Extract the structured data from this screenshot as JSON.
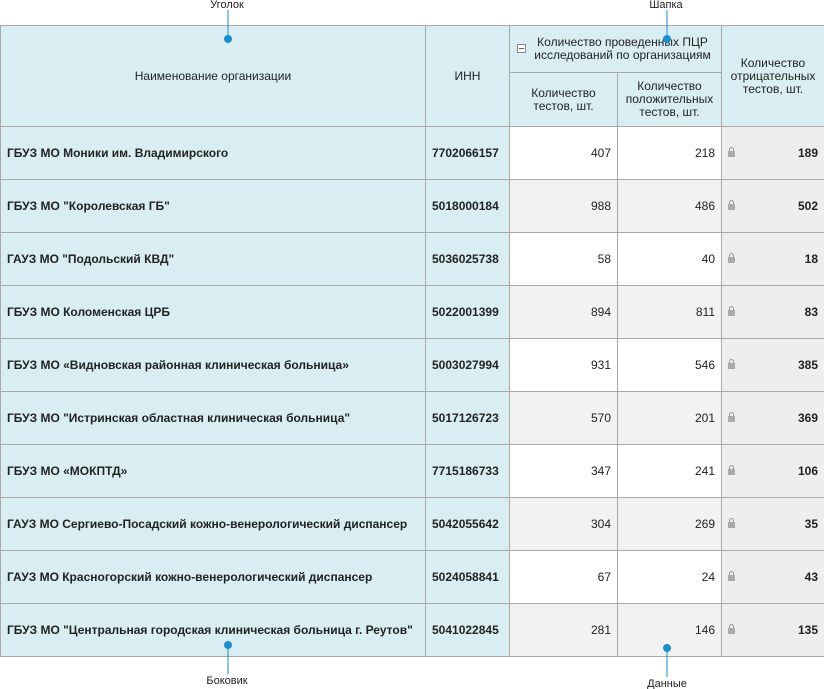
{
  "annotations": {
    "corner": "Уголок",
    "header": "Шапка",
    "stub": "Боковик",
    "data": "Данные"
  },
  "table": {
    "columns": {
      "name": "Наименование организации",
      "inn": "ИНН",
      "group": "Количество проведенных ПЦР исследований по организациям",
      "tests": "Количество тестов, шт.",
      "positive": "Количество положительных тестов, шт.",
      "negative": "Количество отрицательных тестов, шт."
    },
    "rows": [
      [
        "ГБУЗ МО Моники им. Владимирского",
        "7702066157",
        407,
        218,
        189
      ],
      [
        "ГБУЗ МО \"Королевская ГБ\"",
        "5018000184",
        988,
        486,
        502
      ],
      [
        "ГАУЗ МО \"Подольский КВД\"",
        "5036025738",
        58,
        40,
        18
      ],
      [
        "ГБУЗ МО Коломенская ЦРБ",
        "5022001399",
        894,
        811,
        83
      ],
      [
        "ГБУЗ МО «Видновская районная клиническая больница»",
        "5003027994",
        931,
        546,
        385
      ],
      [
        "ГБУЗ МО \"Истринская областная клиническая больница\"",
        "5017126723",
        570,
        201,
        369
      ],
      [
        "ГБУЗ МО «МОКПТД»",
        "7715186733",
        347,
        241,
        106
      ],
      [
        "ГАУЗ МО Сергиево-Посадский кожно-венерологический диспансер",
        "5042055642",
        304,
        269,
        35
      ],
      [
        "ГАУЗ МО Красногорский кожно-венерологический диспансер",
        "5024058841",
        67,
        24,
        43
      ],
      [
        "ГБУЗ МО \"Центральная городская клиническая больница г. Реутов\"",
        "5041022845",
        281,
        146,
        135
      ]
    ]
  }
}
